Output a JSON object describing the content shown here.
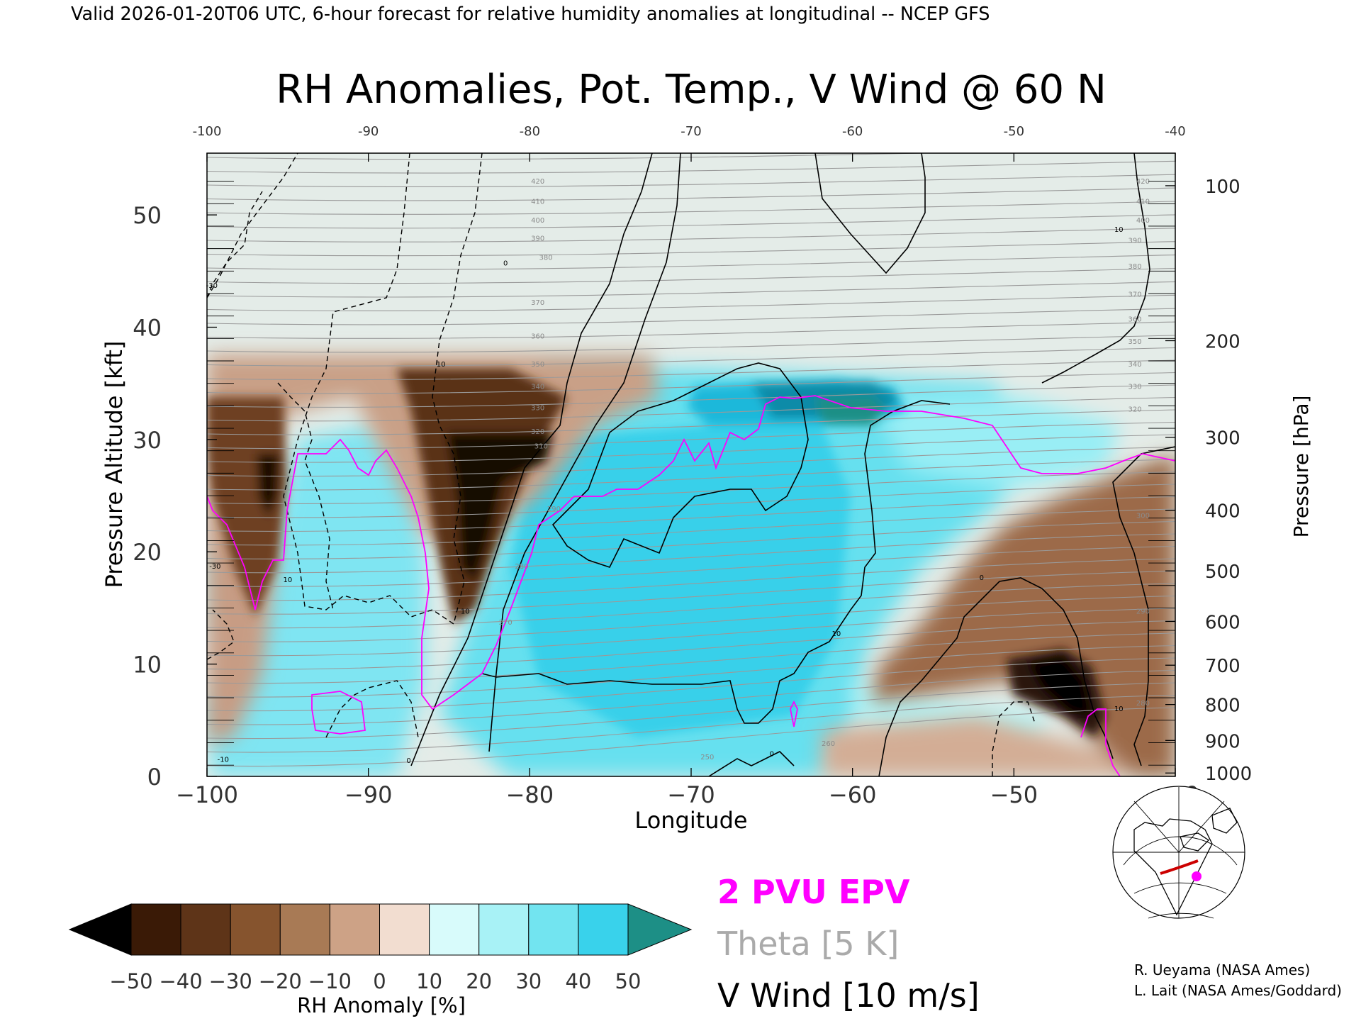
{
  "header": {
    "valid_line": "Valid 2026-01-20T06 UTC, 6-hour forecast for relative humidity anomalies at longitudinal -- NCEP GFS"
  },
  "chart_data": {
    "type": "heatmap",
    "title": "RH Anomalies, Pot. Temp., V Wind @ 60 N",
    "xlabel": "Longitude",
    "ylabel_left": "Pressure Altitude [kft]",
    "ylabel_right": "Pressure [hPa]",
    "xlim": [
      -100,
      -40
    ],
    "ylim_kft": [
      0,
      55.5
    ],
    "x_ticks": [
      "−100",
      "−90",
      "−80",
      "−70",
      "−60",
      "−50",
      "−40"
    ],
    "x_ticks_top": [
      "-100",
      "-90",
      "-80",
      "-70",
      "-60",
      "-50",
      "-40"
    ],
    "y_ticks_left": [
      "0",
      "10",
      "20",
      "30",
      "40",
      "50"
    ],
    "y_ticks_right": [
      {
        "label": "100",
        "kft": 52.6
      },
      {
        "label": "200",
        "kft": 38.8
      },
      {
        "label": "300",
        "kft": 30.2
      },
      {
        "label": "400",
        "kft": 23.7
      },
      {
        "label": "500",
        "kft": 18.3
      },
      {
        "label": "600",
        "kft": 13.8
      },
      {
        "label": "700",
        "kft": 9.9
      },
      {
        "label": "800",
        "kft": 6.4
      },
      {
        "label": "900",
        "kft": 3.2
      },
      {
        "label": "1000",
        "kft": 0.3
      }
    ],
    "colorbar": {
      "label": "RH Anomaly [%]",
      "ticks": [
        "−50",
        "−40",
        "−30",
        "−20",
        "−10",
        "0",
        "10",
        "20",
        "30",
        "40",
        "50"
      ],
      "colors": [
        "#000000",
        "#3a1a06",
        "#5e3418",
        "#86542e",
        "#a87a55",
        "#cda286",
        "#f2ddd0",
        "#d8fbfb",
        "#a8f2f6",
        "#72e4f0",
        "#39d2eb",
        "#17b3d8",
        "#0e7e9a",
        "#1d8f86"
      ]
    },
    "rh_features": [
      {
        "name": "dry tongue",
        "lon": -84,
        "kft_range": [
          15,
          31
        ],
        "rh_anom": -50
      },
      {
        "name": "dry column",
        "lon": -97,
        "kft_range": [
          20,
          30
        ],
        "rh_anom": -45
      },
      {
        "name": "dry low-level",
        "lon": -46,
        "kft_range": [
          4,
          11
        ],
        "rh_anom": -50
      },
      {
        "name": "moist upper band",
        "lon_range": [
          -70,
          -58
        ],
        "kft": 34,
        "rh_anom": 45
      },
      {
        "name": "moist mid-level",
        "lon_range": [
          -80,
          -58
        ],
        "kft_range": [
          8,
          30
        ],
        "rh_anom": 30
      }
    ],
    "theta_labels": [
      {
        "lon": -79,
        "kft": 46,
        "text": "380"
      },
      {
        "lon": -79.5,
        "kft": 42,
        "text": "370"
      },
      {
        "lon": -79.5,
        "kft": 39,
        "text": "360"
      },
      {
        "lon": -79.5,
        "kft": 36.5,
        "text": "350"
      },
      {
        "lon": -79.5,
        "kft": 34.5,
        "text": "340"
      },
      {
        "lon": -79.5,
        "kft": 32.6,
        "text": "330"
      },
      {
        "lon": -79.5,
        "kft": 30.5,
        "text": "320"
      },
      {
        "lon": -79.3,
        "kft": 29.2,
        "text": "310"
      },
      {
        "lon": -78.5,
        "kft": 23.6,
        "text": "290"
      },
      {
        "lon": -80.5,
        "kft": 18.5,
        "text": "280"
      },
      {
        "lon": -81.5,
        "kft": 13.5,
        "text": "270"
      },
      {
        "lon": -69,
        "kft": 1.5,
        "text": "250"
      },
      {
        "lon": -61.5,
        "kft": 2.7,
        "text": "260"
      },
      {
        "lon": -42,
        "kft": 23,
        "text": "300"
      },
      {
        "lon": -42,
        "kft": 14.5,
        "text": "290"
      },
      {
        "lon": -42,
        "kft": 6.3,
        "text": "280"
      },
      {
        "lon": -42.5,
        "kft": 47.5,
        "text": "390"
      },
      {
        "lon": -42.5,
        "kft": 45.2,
        "text": "380"
      },
      {
        "lon": -42.5,
        "kft": 42.7,
        "text": "370"
      },
      {
        "lon": -42.5,
        "kft": 40.5,
        "text": "360"
      },
      {
        "lon": -42.5,
        "kft": 38.5,
        "text": "350"
      },
      {
        "lon": -42.5,
        "kft": 36.5,
        "text": "340"
      },
      {
        "lon": -42.5,
        "kft": 34.5,
        "text": "330"
      },
      {
        "lon": -42.5,
        "kft": 32.5,
        "text": "320"
      },
      {
        "lon": -42,
        "kft": 52.8,
        "text": "420"
      },
      {
        "lon": -42,
        "kft": 51.0,
        "text": "410"
      },
      {
        "lon": -42,
        "kft": 49.3,
        "text": "400"
      },
      {
        "lon": -79.5,
        "kft": 52.8,
        "text": "420"
      },
      {
        "lon": -79.5,
        "kft": 51.0,
        "text": "410"
      },
      {
        "lon": -79.5,
        "kft": 49.3,
        "text": "400"
      },
      {
        "lon": -79.5,
        "kft": 47.7,
        "text": "390"
      }
    ],
    "wind_labels": [
      {
        "lon": -99.7,
        "kft": 43.5,
        "text": "-30"
      },
      {
        "lon": -99.5,
        "kft": 18.5,
        "text": "-30"
      },
      {
        "lon": -99,
        "kft": 1.3,
        "text": "-10"
      },
      {
        "lon": -95,
        "kft": 17.3,
        "text": "10"
      },
      {
        "lon": -85.5,
        "kft": 36.5,
        "text": "10"
      },
      {
        "lon": -81.5,
        "kft": 45.5,
        "text": "0"
      },
      {
        "lon": -84,
        "kft": 14.5,
        "text": "10"
      },
      {
        "lon": -87.5,
        "kft": 1.2,
        "text": "0"
      },
      {
        "lon": -65,
        "kft": 1.8,
        "text": "0"
      },
      {
        "lon": -61,
        "kft": 12.5,
        "text": "10"
      },
      {
        "lon": -52,
        "kft": 17.5,
        "text": "0"
      },
      {
        "lon": -43.5,
        "kft": 48.5,
        "text": "10"
      },
      {
        "lon": -43.5,
        "kft": 5.8,
        "text": "10"
      }
    ]
  },
  "legend": {
    "epv_label": "2 PVU EPV",
    "theta_label": "Theta [5 K]",
    "wind_label": "V Wind [10 m/s]",
    "epv_color": "#ff00ff",
    "theta_color": "#aaaaaa",
    "wind_color": "#000000"
  },
  "credits": {
    "line1": "R. Ueyama (NASA Ames)",
    "line2": "L. Lait (NASA Ames/Goddard)"
  },
  "inset_map": {
    "marker_color": "#ff00ff",
    "track_color": "#cc0000"
  }
}
